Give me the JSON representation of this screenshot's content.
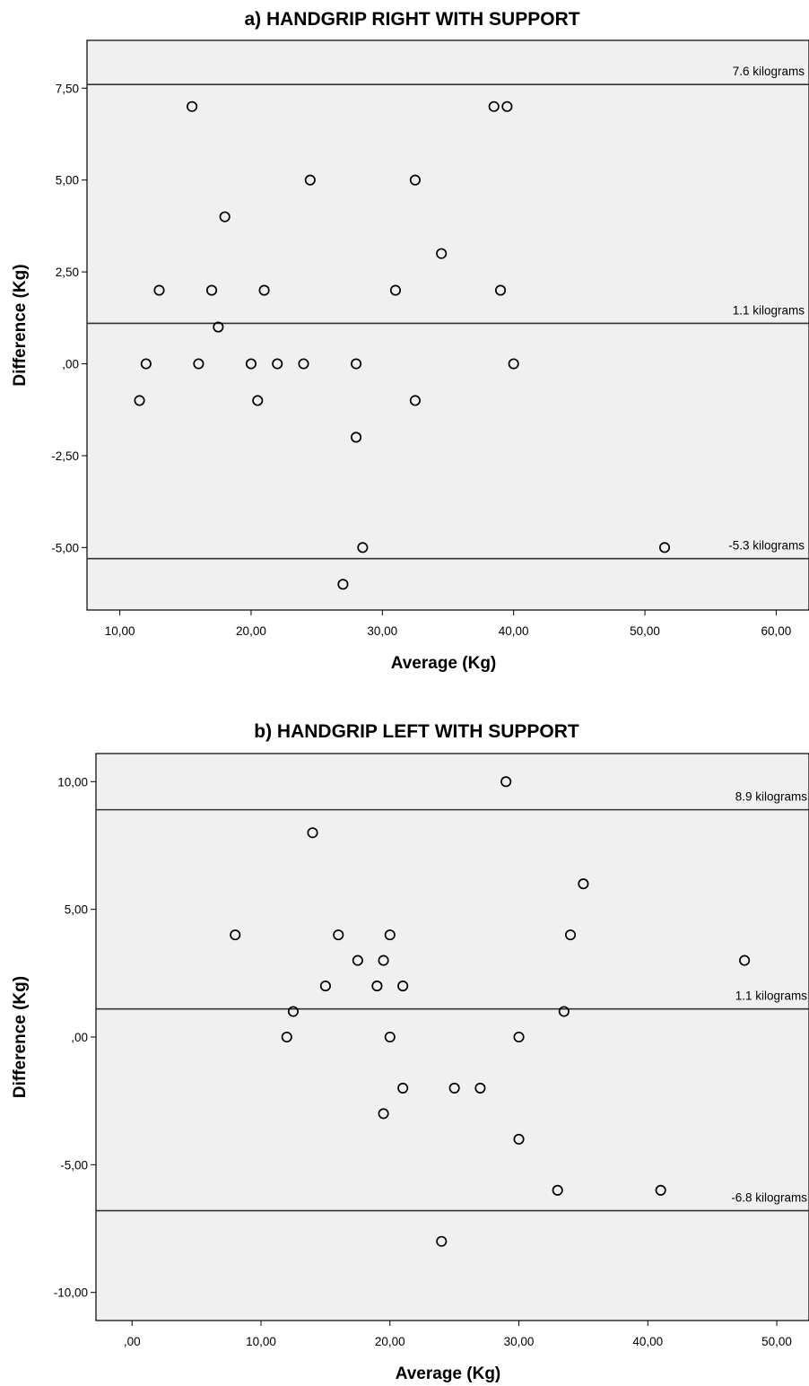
{
  "chart_data": [
    {
      "type": "scatter",
      "title": "a) HANDGRIP RIGHT WITH SUPPORT",
      "xlabel": "Average (Kg)",
      "ylabel": "Difference (Kg)",
      "xlim": [
        7.5,
        62.5
      ],
      "ylim": [
        -6.7,
        8.8
      ],
      "xticks": [
        10,
        20,
        30,
        40,
        50,
        60
      ],
      "xtick_labels": [
        "10,00",
        "20,00",
        "30,00",
        "40,00",
        "50,00",
        "60,00"
      ],
      "yticks": [
        7.5,
        5,
        2.5,
        0,
        -2.5,
        -5
      ],
      "ytick_labels": [
        "7,50",
        "5,00",
        "2,50",
        ",00",
        "-2,50",
        "-5,00"
      ],
      "grid": false,
      "reference_lines": [
        {
          "y": 7.6,
          "label": "7.6 kilograms"
        },
        {
          "y": 1.1,
          "label": "1.1 kilograms"
        },
        {
          "y": -5.3,
          "label": "-5.3 kilograms"
        }
      ],
      "points": [
        {
          "x": 15.5,
          "y": 7
        },
        {
          "x": 38.5,
          "y": 7
        },
        {
          "x": 39.5,
          "y": 7
        },
        {
          "x": 24.5,
          "y": 5
        },
        {
          "x": 32.5,
          "y": 5
        },
        {
          "x": 18,
          "y": 4
        },
        {
          "x": 34.5,
          "y": 3
        },
        {
          "x": 13,
          "y": 2
        },
        {
          "x": 17,
          "y": 2
        },
        {
          "x": 21,
          "y": 2
        },
        {
          "x": 31,
          "y": 2
        },
        {
          "x": 39,
          "y": 2
        },
        {
          "x": 17.5,
          "y": 1
        },
        {
          "x": 12,
          "y": 0
        },
        {
          "x": 16,
          "y": 0
        },
        {
          "x": 20,
          "y": 0
        },
        {
          "x": 22,
          "y": 0
        },
        {
          "x": 24,
          "y": 0
        },
        {
          "x": 28,
          "y": 0
        },
        {
          "x": 40,
          "y": 0
        },
        {
          "x": 11.5,
          "y": -1
        },
        {
          "x": 20.5,
          "y": -1
        },
        {
          "x": 32.5,
          "y": -1
        },
        {
          "x": 28,
          "y": -2
        },
        {
          "x": 28.5,
          "y": -5
        },
        {
          "x": 51.5,
          "y": -5
        },
        {
          "x": 27,
          "y": -6
        }
      ]
    },
    {
      "type": "scatter",
      "title": "b) HANDGRIP LEFT WITH SUPPORT",
      "xlabel": "Average (Kg)",
      "ylabel": "Difference (Kg)",
      "xlim": [
        -2.8,
        52.5
      ],
      "ylim": [
        -11.1,
        11.1
      ],
      "xticks": [
        0,
        10,
        20,
        30,
        40,
        50
      ],
      "xtick_labels": [
        ",00",
        "10,00",
        "20,00",
        "30,00",
        "40,00",
        "50,00"
      ],
      "yticks": [
        10,
        5,
        0,
        -5,
        -10
      ],
      "ytick_labels": [
        "10,00",
        "5,00",
        ",00",
        "-5,00",
        "-10,00"
      ],
      "grid": false,
      "reference_lines": [
        {
          "y": 8.9,
          "label": "8.9 kilograms"
        },
        {
          "y": 1.1,
          "label": "1.1 kilograms"
        },
        {
          "y": -6.8,
          "label": "-6.8 kilograms"
        }
      ],
      "points": [
        {
          "x": 29,
          "y": 10
        },
        {
          "x": 14,
          "y": 8
        },
        {
          "x": 35,
          "y": 6
        },
        {
          "x": 8,
          "y": 4
        },
        {
          "x": 16,
          "y": 4
        },
        {
          "x": 20,
          "y": 4
        },
        {
          "x": 34,
          "y": 4
        },
        {
          "x": 17.5,
          "y": 3
        },
        {
          "x": 19.5,
          "y": 3
        },
        {
          "x": 47.5,
          "y": 3
        },
        {
          "x": 15,
          "y": 2
        },
        {
          "x": 19,
          "y": 2
        },
        {
          "x": 21,
          "y": 2
        },
        {
          "x": 12.5,
          "y": 1
        },
        {
          "x": 33.5,
          "y": 1
        },
        {
          "x": 12,
          "y": 0
        },
        {
          "x": 20,
          "y": 0
        },
        {
          "x": 30,
          "y": 0
        },
        {
          "x": 21,
          "y": -2
        },
        {
          "x": 25,
          "y": -2
        },
        {
          "x": 27,
          "y": -2
        },
        {
          "x": 19.5,
          "y": -3
        },
        {
          "x": 30,
          "y": -4
        },
        {
          "x": 33,
          "y": -6
        },
        {
          "x": 41,
          "y": -6
        },
        {
          "x": 24,
          "y": -8
        }
      ]
    }
  ]
}
